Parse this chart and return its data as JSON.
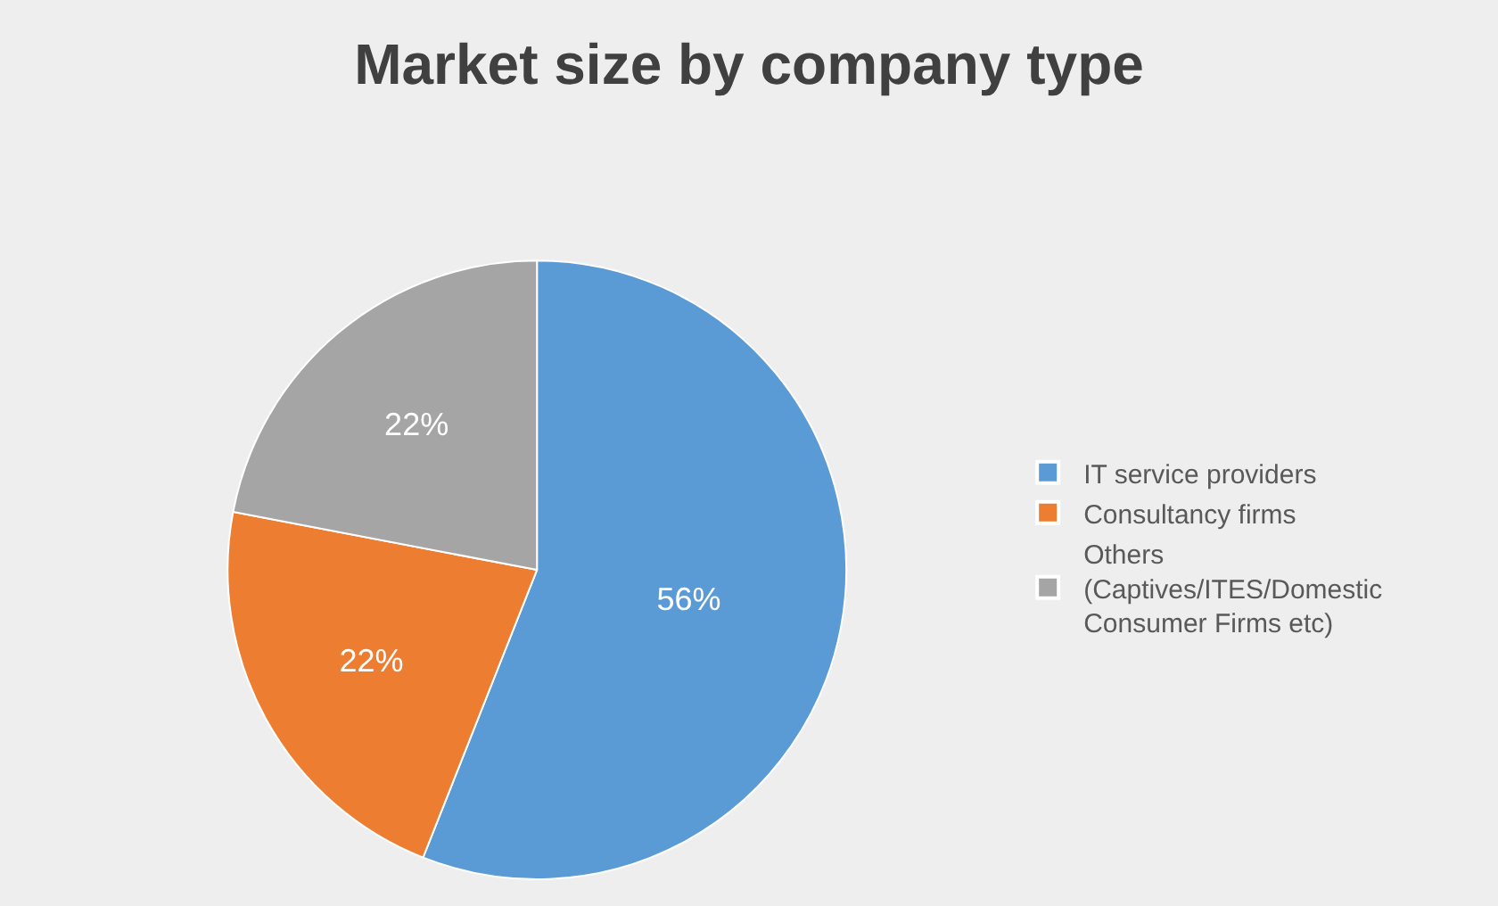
{
  "chart_data": {
    "type": "pie",
    "title": "Market size by company type",
    "categories": [
      "IT service providers",
      "Consultancy firms",
      "Others (Captives/ITES/Domestic Consumer Firms etc)"
    ],
    "values": [
      56,
      22,
      22
    ],
    "value_labels": [
      "56%",
      "22%",
      "22%"
    ],
    "colors": [
      "#5b9bd5",
      "#ed7d31",
      "#a5a5a5"
    ],
    "legend": "right"
  }
}
